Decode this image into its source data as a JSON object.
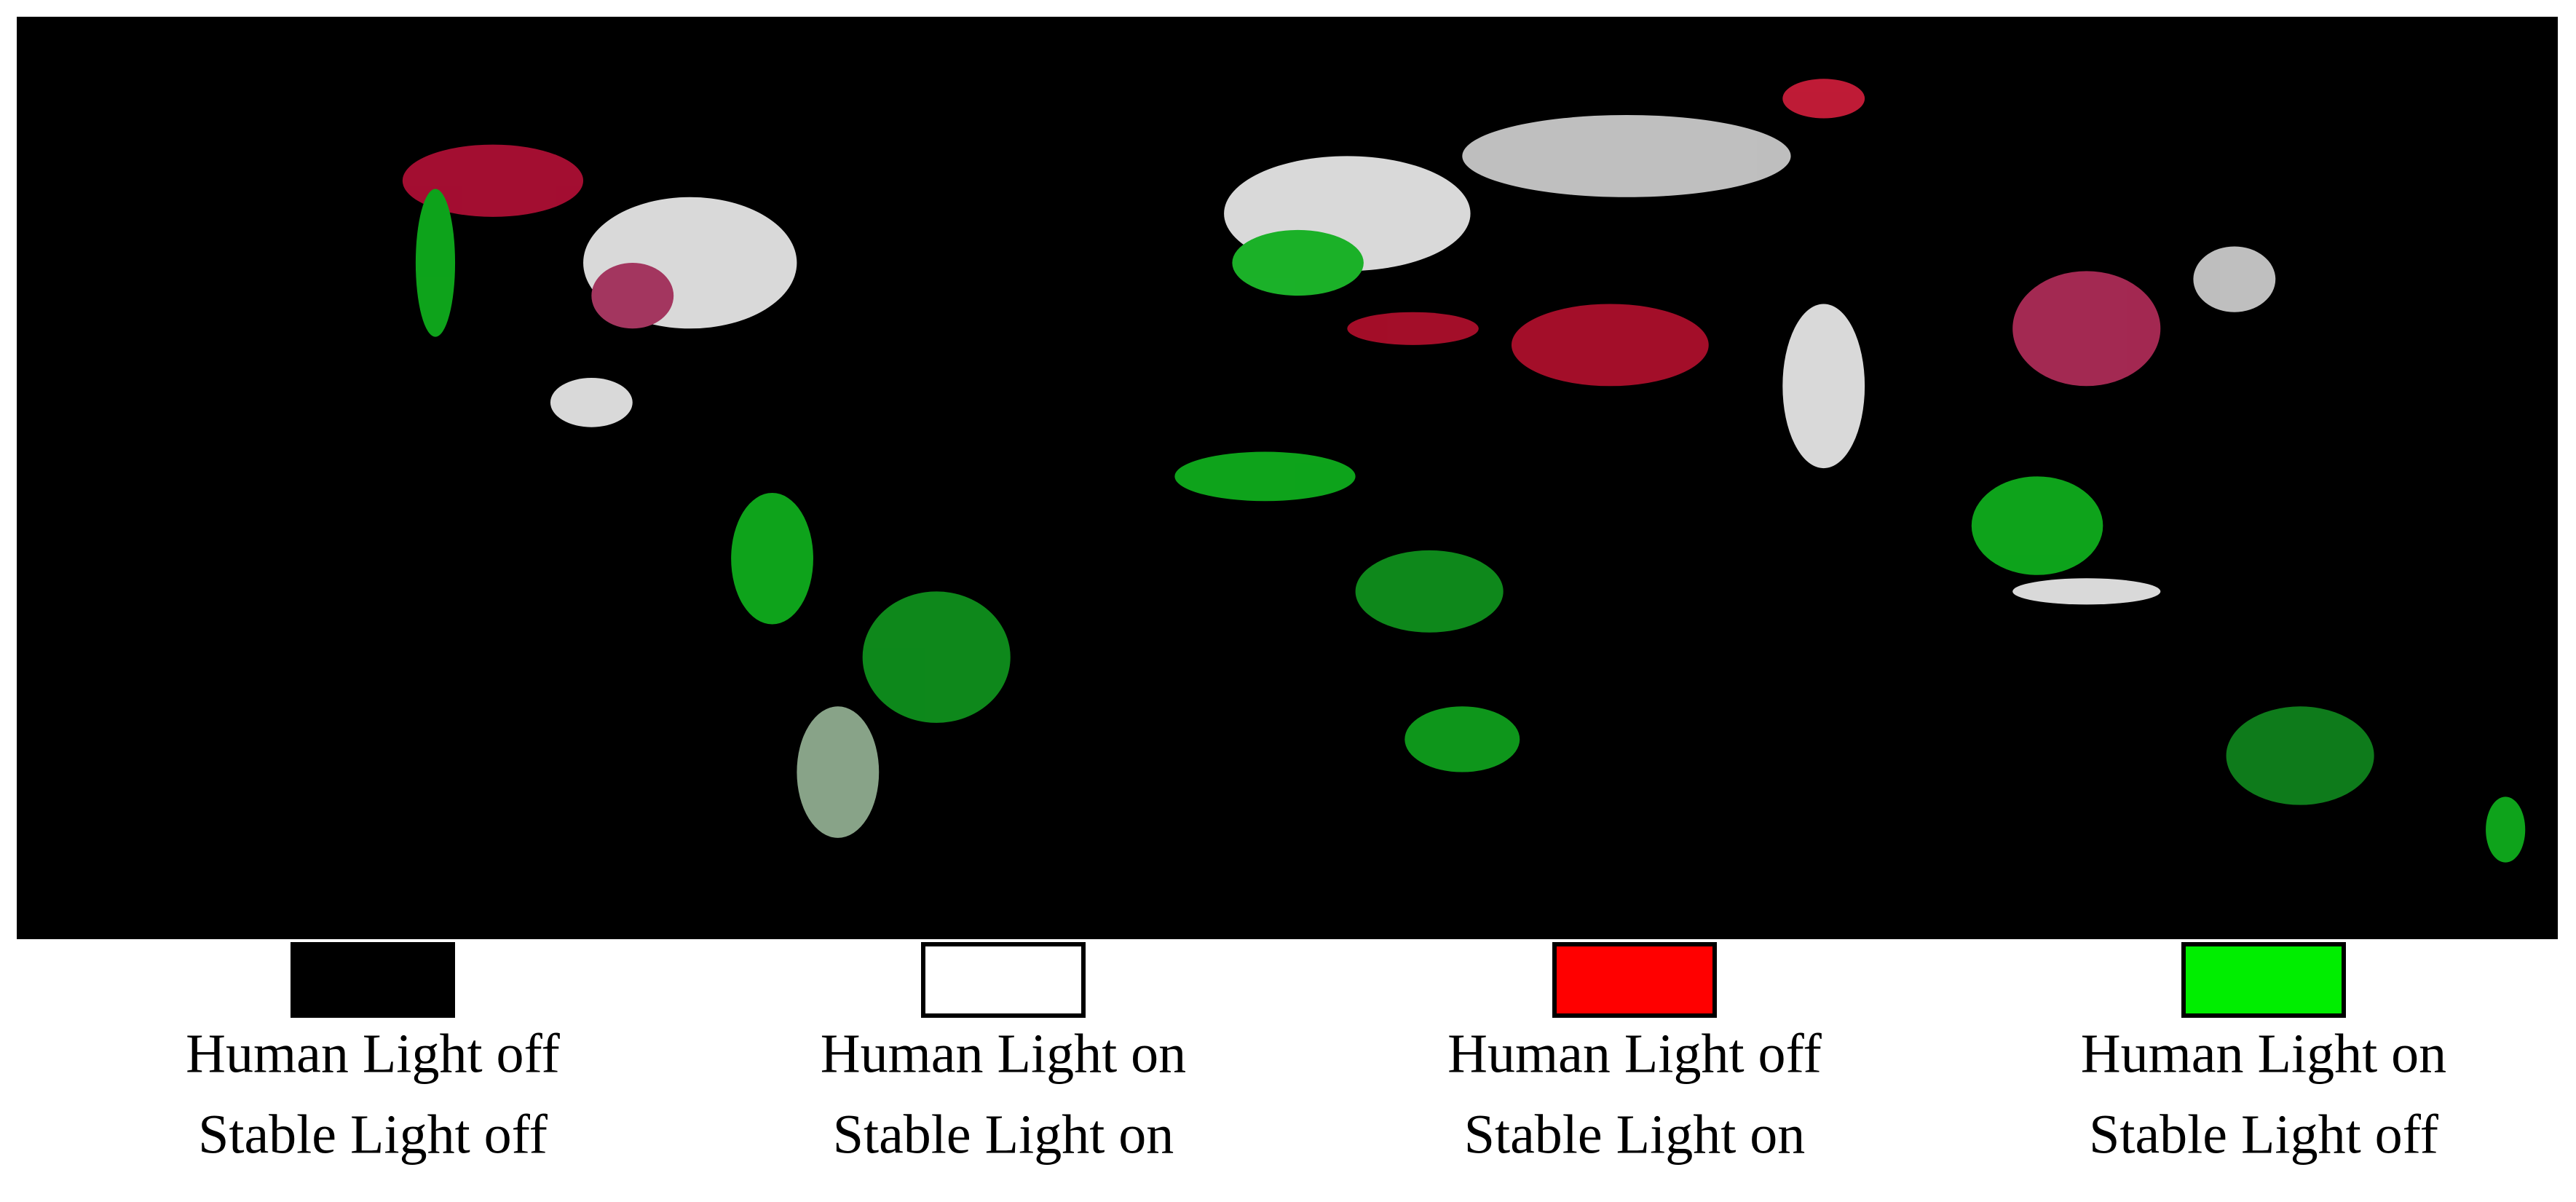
{
  "legend": {
    "items": [
      {
        "color": "#000000",
        "label_line1": "Human Light off",
        "label_line2": "Stable Light off"
      },
      {
        "color": "#ffffff",
        "label_line1": "Human Light on",
        "label_line2": "Stable Light on"
      },
      {
        "color": "#ff0000",
        "label_line1": "Human Light off",
        "label_line2": "Stable Light on"
      },
      {
        "color": "#00ee00",
        "label_line1": "Human Light on",
        "label_line2": "Stable Light off"
      }
    ]
  }
}
